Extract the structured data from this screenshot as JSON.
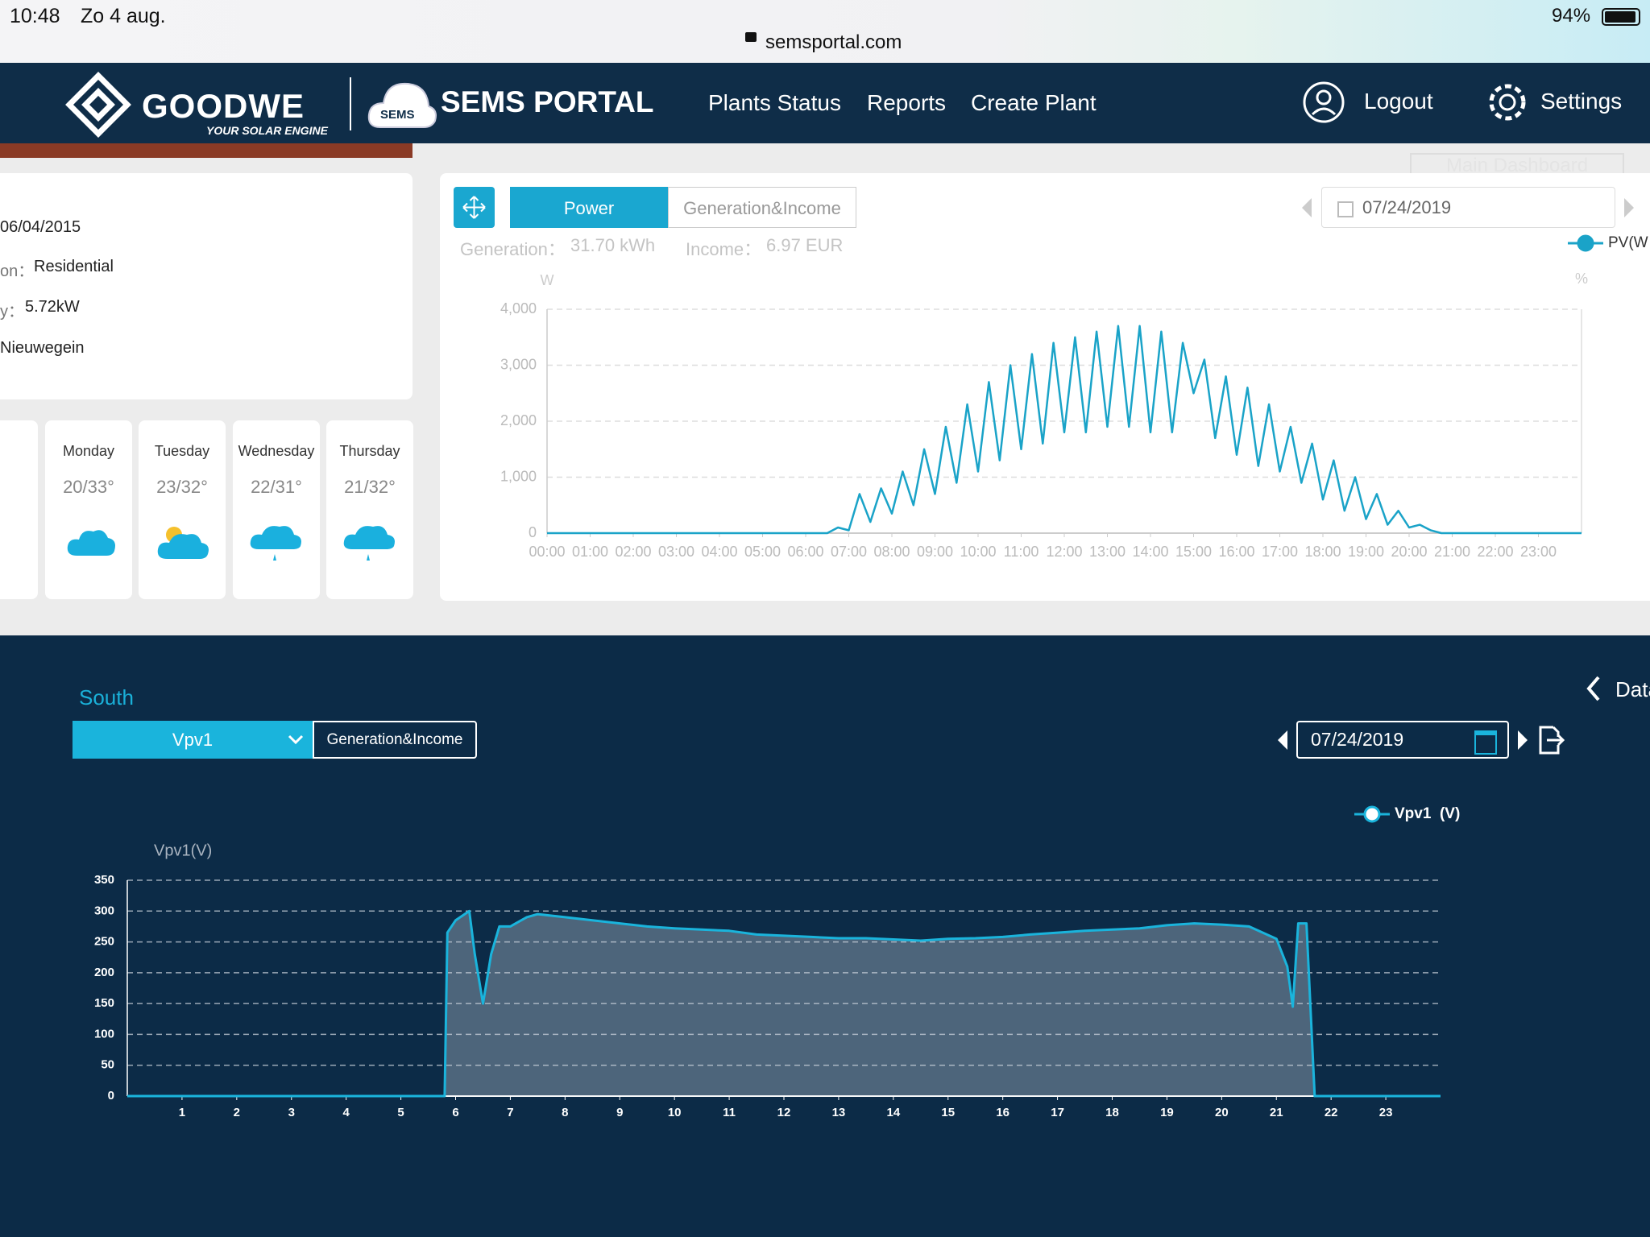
{
  "status": {
    "time": "10:48",
    "date": "Zo 4 aug.",
    "battery": "94%",
    "url": "semsportal.com"
  },
  "header": {
    "brand": "GOODWE",
    "tagline": "YOUR SOLAR ENGINE",
    "cloud": "SEMS",
    "portal": "SEMS PORTAL",
    "nav": [
      "Plants Status",
      "Reports",
      "Create Plant"
    ],
    "logout": "Logout",
    "settings": "Settings",
    "faded": "Main Dashboard"
  },
  "info": {
    "date": "06/04/2015",
    "type_label": "on：",
    "type": "Residential",
    "capacity_label": "y：",
    "capacity": "5.72kW",
    "city": "Nieuwegein"
  },
  "weather": {
    "days": [
      "Monday",
      "Tuesday",
      "Wednesday",
      "Thursday"
    ],
    "temps": [
      "20/33°",
      "23/32°",
      "22/31°",
      "21/32°"
    ]
  },
  "power_panel": {
    "tabs": [
      "Power",
      "Generation&Income"
    ],
    "date": "07/24/2019",
    "generation_label": "Generation：",
    "generation": "31.70 kWh",
    "income_label": "Income：",
    "income": "6.97 EUR",
    "right_unit": "%"
  },
  "string_panel": {
    "title": "South",
    "select": "Vpv1",
    "tab": "Generation&Income",
    "date": "07/24/2019",
    "side": "Data"
  },
  "chart_data": [
    {
      "type": "line",
      "y_label": "W",
      "xlim": [
        0,
        24
      ],
      "ylim": [
        0,
        4000
      ],
      "grid": true,
      "yticks": [
        0,
        {
          "value": 1000,
          "label": "1,000"
        },
        {
          "value": 2000,
          "label": "2,000"
        },
        {
          "value": 3000,
          "label": "3,000"
        },
        {
          "value": 4000,
          "label": "4,000"
        }
      ],
      "xticks": [
        {
          "value": 0,
          "label": "00:00"
        },
        {
          "value": 1,
          "label": "01:00"
        },
        {
          "value": 2,
          "label": "02:00"
        },
        {
          "value": 3,
          "label": "03:00"
        },
        {
          "value": 4,
          "label": "04:00"
        },
        {
          "value": 5,
          "label": "05:00"
        },
        {
          "value": 6,
          "label": "06:00"
        },
        {
          "value": 7,
          "label": "07:00"
        },
        {
          "value": 8,
          "label": "08:00"
        },
        {
          "value": 9,
          "label": "09:00"
        },
        {
          "value": 10,
          "label": "10:00"
        },
        {
          "value": 11,
          "label": "11:00"
        },
        {
          "value": 12,
          "label": "12:00"
        },
        {
          "value": 13,
          "label": "13:00"
        },
        {
          "value": 14,
          "label": "14:00"
        },
        {
          "value": 15,
          "label": "15:00"
        },
        {
          "value": 16,
          "label": "16:00"
        },
        {
          "value": 17,
          "label": "17:00"
        },
        {
          "value": 18,
          "label": "18:00"
        },
        {
          "value": 19,
          "label": "19:00"
        },
        {
          "value": 20,
          "label": "20:00"
        },
        {
          "value": 21,
          "label": "21:00"
        },
        {
          "value": 22,
          "label": "22:00"
        },
        {
          "value": 23,
          "label": "23:00"
        }
      ],
      "x": [
        0,
        6.5,
        6.75,
        7,
        7.25,
        7.5,
        7.75,
        8,
        8.25,
        8.5,
        8.75,
        9,
        9.25,
        9.5,
        9.75,
        10,
        10.25,
        10.5,
        10.75,
        11,
        11.25,
        11.5,
        11.75,
        12,
        12.25,
        12.5,
        12.75,
        13,
        13.25,
        13.5,
        13.75,
        14,
        14.25,
        14.5,
        14.75,
        15,
        15.25,
        15.5,
        15.75,
        16,
        16.25,
        16.5,
        16.75,
        17,
        17.25,
        17.5,
        17.75,
        18,
        18.25,
        18.5,
        18.75,
        19,
        19.25,
        19.5,
        19.75,
        20,
        20.25,
        20.5,
        20.75,
        21,
        24
      ],
      "series": [
        {
          "name": "PV(W",
          "color": "#1aa3c8",
          "values": [
            0,
            0,
            100,
            50,
            700,
            200,
            800,
            350,
            1100,
            500,
            1500,
            700,
            1900,
            900,
            2300,
            1100,
            2700,
            1300,
            3000,
            1500,
            3200,
            1600,
            3400,
            1800,
            3500,
            1800,
            3600,
            1900,
            3700,
            1900,
            3700,
            1800,
            3600,
            1800,
            3400,
            2500,
            3100,
            1700,
            2800,
            1400,
            2600,
            1200,
            2300,
            1100,
            1900,
            900,
            1600,
            600,
            1300,
            400,
            1000,
            250,
            700,
            150,
            400,
            100,
            150,
            50,
            0,
            0,
            0
          ]
        }
      ]
    },
    {
      "type": "area",
      "y_label": "Vpv1(V)",
      "xlim": [
        0,
        24
      ],
      "ylim": [
        0,
        350
      ],
      "grid": true,
      "yticks": [
        0,
        50,
        100,
        150,
        200,
        250,
        300,
        350
      ],
      "xticks": [
        1,
        2,
        3,
        4,
        5,
        6,
        7,
        8,
        9,
        10,
        11,
        12,
        13,
        14,
        15,
        16,
        17,
        18,
        19,
        20,
        21,
        22,
        23
      ],
      "x": [
        0,
        5.8,
        5.85,
        6,
        6.25,
        6.35,
        6.5,
        6.65,
        6.8,
        7,
        7.3,
        7.5,
        8,
        8.5,
        9,
        9.5,
        10,
        10.5,
        11,
        11.5,
        12,
        12.5,
        13,
        13.5,
        14,
        14.5,
        15,
        15.5,
        16,
        16.5,
        17,
        17.5,
        18,
        18.5,
        19,
        19.5,
        20,
        20.5,
        21,
        21.2,
        21.3,
        21.4,
        21.55,
        21.7,
        24
      ],
      "series": [
        {
          "name": "Vpv1  (V)",
          "color": "#1ab4dc",
          "values": [
            0,
            0,
            265,
            285,
            300,
            230,
            150,
            230,
            275,
            275,
            290,
            295,
            290,
            285,
            280,
            275,
            272,
            270,
            268,
            262,
            260,
            258,
            256,
            256,
            254,
            252,
            255,
            256,
            258,
            262,
            265,
            268,
            270,
            272,
            277,
            280,
            278,
            275,
            255,
            210,
            145,
            280,
            280,
            0,
            0
          ]
        }
      ]
    }
  ]
}
